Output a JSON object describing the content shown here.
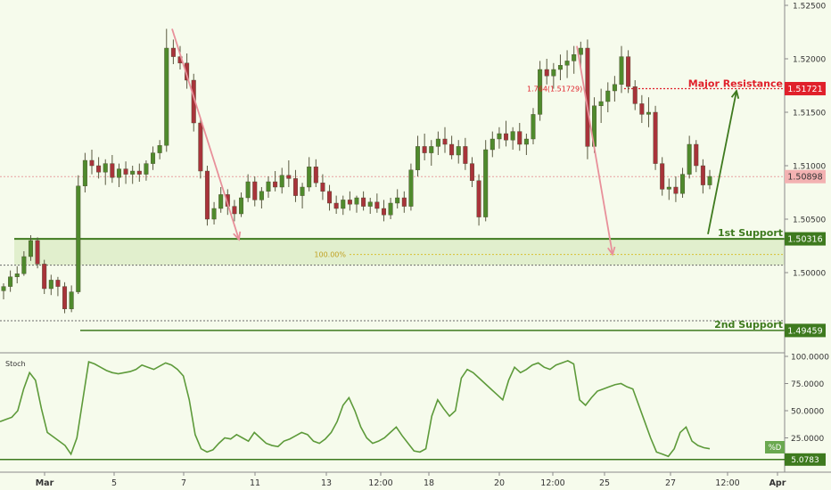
{
  "chart_data": [
    {
      "type": "candlestick",
      "title": "",
      "y_axis_side": "right",
      "ylim": [
        1.4925,
        1.5255
      ],
      "y_ticks": [
        1.5,
        1.505,
        1.51,
        1.515,
        1.52,
        1.525
      ],
      "y_tick_labels": [
        "1.50000",
        "1.50500",
        "1.51000",
        "1.51500",
        "1.52000",
        "1.52500"
      ],
      "x_tick_labels": [
        "Mar",
        "5",
        "7",
        "11",
        "13",
        "12:00",
        "18",
        "20",
        "12:00",
        "25",
        "27",
        "12:00",
        "Apr"
      ],
      "grid": false,
      "ohlc": [
        [
          1.4983,
          1.499,
          1.4975,
          1.4987
        ],
        [
          1.4987,
          1.5002,
          1.4982,
          1.4996
        ],
        [
          1.4996,
          1.5006,
          1.499,
          1.4999
        ],
        [
          1.4999,
          1.502,
          1.4997,
          1.5015
        ],
        [
          1.5015,
          1.5035,
          1.5011,
          1.503
        ],
        [
          1.503,
          1.5033,
          1.5004,
          1.5008
        ],
        [
          1.5008,
          1.5012,
          1.498,
          1.4985
        ],
        [
          1.4985,
          1.4998,
          1.4979,
          1.4993
        ],
        [
          1.4993,
          1.4996,
          1.4978,
          1.4987
        ],
        [
          1.4987,
          1.4991,
          1.4962,
          1.4966
        ],
        [
          1.4966,
          1.4988,
          1.4963,
          1.4982
        ],
        [
          1.4982,
          1.5091,
          1.498,
          1.5081
        ],
        [
          1.5081,
          1.5112,
          1.5075,
          1.5105
        ],
        [
          1.5105,
          1.5115,
          1.5092,
          1.51
        ],
        [
          1.51,
          1.5108,
          1.5088,
          1.5094
        ],
        [
          1.5094,
          1.5106,
          1.5082,
          1.5102
        ],
        [
          1.5102,
          1.511,
          1.5084,
          1.5089
        ],
        [
          1.5089,
          1.5102,
          1.508,
          1.5097
        ],
        [
          1.5097,
          1.5104,
          1.5083,
          1.5092
        ],
        [
          1.5092,
          1.51,
          1.5083,
          1.5095
        ],
        [
          1.5095,
          1.5102,
          1.5085,
          1.5092
        ],
        [
          1.5092,
          1.5105,
          1.5086,
          1.5102
        ],
        [
          1.5102,
          1.5118,
          1.5096,
          1.5112
        ],
        [
          1.5112,
          1.5124,
          1.5106,
          1.5119
        ],
        [
          1.5119,
          1.5228,
          1.5113,
          1.521
        ],
        [
          1.521,
          1.5218,
          1.5195,
          1.5202
        ],
        [
          1.5202,
          1.5212,
          1.519,
          1.5196
        ],
        [
          1.5196,
          1.5205,
          1.5172,
          1.518
        ],
        [
          1.518,
          1.5186,
          1.5132,
          1.514
        ],
        [
          1.514,
          1.5144,
          1.5088,
          1.5095
        ],
        [
          1.5095,
          1.51,
          1.5044,
          1.505
        ],
        [
          1.505,
          1.5066,
          1.5045,
          1.506
        ],
        [
          1.506,
          1.508,
          1.5056,
          1.5073
        ],
        [
          1.5073,
          1.5078,
          1.5054,
          1.5062
        ],
        [
          1.5062,
          1.5068,
          1.5048,
          1.5055
        ],
        [
          1.5055,
          1.5075,
          1.5052,
          1.507
        ],
        [
          1.507,
          1.5092,
          1.5066,
          1.5085
        ],
        [
          1.5085,
          1.509,
          1.5062,
          1.5068
        ],
        [
          1.5068,
          1.508,
          1.506,
          1.5076
        ],
        [
          1.5076,
          1.509,
          1.507,
          1.5085
        ],
        [
          1.5085,
          1.5095,
          1.5076,
          1.508
        ],
        [
          1.508,
          1.5098,
          1.5074,
          1.5091
        ],
        [
          1.5091,
          1.5105,
          1.508,
          1.5088
        ],
        [
          1.5088,
          1.5096,
          1.5066,
          1.5072
        ],
        [
          1.5072,
          1.5084,
          1.506,
          1.508
        ],
        [
          1.508,
          1.5108,
          1.5076,
          1.5099
        ],
        [
          1.5099,
          1.5106,
          1.508,
          1.5084
        ],
        [
          1.5084,
          1.5092,
          1.5068,
          1.5076
        ],
        [
          1.5076,
          1.5082,
          1.5058,
          1.5065
        ],
        [
          1.5065,
          1.5072,
          1.5055,
          1.506
        ],
        [
          1.506,
          1.5072,
          1.5054,
          1.5068
        ],
        [
          1.5068,
          1.5076,
          1.5058,
          1.5064
        ],
        [
          1.5064,
          1.5072,
          1.5056,
          1.507
        ],
        [
          1.507,
          1.5076,
          1.5058,
          1.5062
        ],
        [
          1.5062,
          1.507,
          1.5055,
          1.5066
        ],
        [
          1.5066,
          1.5074,
          1.5056,
          1.506
        ],
        [
          1.506,
          1.5068,
          1.5048,
          1.5054
        ],
        [
          1.5054,
          1.507,
          1.505,
          1.5065
        ],
        [
          1.5065,
          1.5078,
          1.506,
          1.507
        ],
        [
          1.507,
          1.5076,
          1.5056,
          1.5062
        ],
        [
          1.5062,
          1.5102,
          1.5058,
          1.5096
        ],
        [
          1.5096,
          1.5128,
          1.509,
          1.5118
        ],
        [
          1.5118,
          1.513,
          1.5105,
          1.5112
        ],
        [
          1.5112,
          1.5124,
          1.51,
          1.5118
        ],
        [
          1.5118,
          1.5132,
          1.511,
          1.5125
        ],
        [
          1.5125,
          1.5136,
          1.5112,
          1.512
        ],
        [
          1.512,
          1.5128,
          1.5106,
          1.511
        ],
        [
          1.511,
          1.5124,
          1.5102,
          1.5118
        ],
        [
          1.5118,
          1.5126,
          1.5096,
          1.5102
        ],
        [
          1.5102,
          1.5108,
          1.508,
          1.5086
        ],
        [
          1.5086,
          1.5092,
          1.5044,
          1.5052
        ],
        [
          1.5052,
          1.5124,
          1.5048,
          1.5115
        ],
        [
          1.5115,
          1.5132,
          1.5108,
          1.5125
        ],
        [
          1.5125,
          1.5136,
          1.5116,
          1.513
        ],
        [
          1.513,
          1.5142,
          1.5118,
          1.5124
        ],
        [
          1.5124,
          1.5136,
          1.5115,
          1.5132
        ],
        [
          1.5132,
          1.514,
          1.5114,
          1.512
        ],
        [
          1.512,
          1.513,
          1.511,
          1.5125
        ],
        [
          1.5125,
          1.5154,
          1.512,
          1.5148
        ],
        [
          1.5148,
          1.5198,
          1.5142,
          1.519
        ],
        [
          1.519,
          1.52,
          1.5176,
          1.5184
        ],
        [
          1.5184,
          1.5196,
          1.5172,
          1.519
        ],
        [
          1.519,
          1.5204,
          1.518,
          1.5194
        ],
        [
          1.5194,
          1.5208,
          1.5182,
          1.5198
        ],
        [
          1.5198,
          1.5212,
          1.5186,
          1.5204
        ],
        [
          1.5204,
          1.5216,
          1.5192,
          1.521
        ],
        [
          1.521,
          1.5218,
          1.5106,
          1.5118
        ],
        [
          1.5118,
          1.5164,
          1.5112,
          1.5156
        ],
        [
          1.5156,
          1.5172,
          1.514,
          1.516
        ],
        [
          1.516,
          1.5178,
          1.515,
          1.517
        ],
        [
          1.517,
          1.5184,
          1.516,
          1.5176
        ],
        [
          1.5176,
          1.5212,
          1.5168,
          1.5202
        ],
        [
          1.5202,
          1.5208,
          1.5168,
          1.5174
        ],
        [
          1.5174,
          1.518,
          1.5152,
          1.5158
        ],
        [
          1.5158,
          1.5166,
          1.514,
          1.5148
        ],
        [
          1.5148,
          1.5164,
          1.5136,
          1.515
        ],
        [
          1.515,
          1.5156,
          1.5096,
          1.5102
        ],
        [
          1.5102,
          1.5108,
          1.5072,
          1.5078
        ],
        [
          1.5078,
          1.5088,
          1.5068,
          1.508
        ],
        [
          1.508,
          1.509,
          1.5066,
          1.5074
        ],
        [
          1.5074,
          1.5098,
          1.507,
          1.5092
        ],
        [
          1.5092,
          1.5128,
          1.5088,
          1.512
        ],
        [
          1.512,
          1.5124,
          1.5094,
          1.51
        ],
        [
          1.51,
          1.5106,
          1.5074,
          1.5082
        ],
        [
          1.5082,
          1.5096,
          1.5078,
          1.509
        ]
      ],
      "annotations": {
        "major_resistance": {
          "label": "Major Resistance",
          "value": 1.51721,
          "value_label": "1.51721",
          "color": "#e0202a",
          "fib_label": "1.764(1.51729)"
        },
        "first_support": {
          "label": "1st Support",
          "value": 1.50316,
          "value_label": "1.50316",
          "color": "#3e7a1e",
          "zone_low": 1.5007,
          "fib_level": 1.5017,
          "fib_label": "100.00%"
        },
        "second_support": {
          "label": "2nd Support",
          "value": 1.49459,
          "value_label": "1.49459",
          "color": "#3e7a1e",
          "dotted_level": 1.4955
        },
        "current_price": {
          "value": 1.50898,
          "value_label": "1.50898",
          "color": "#f3b2b2"
        },
        "projection_arrow": {
          "from": 1.5036,
          "to": 1.517,
          "color": "#3e7a1e"
        },
        "move_arrows": [
          {
            "from": 1.5228,
            "to": 1.5031,
            "color": "#e8909a"
          },
          {
            "from": 1.5212,
            "to": 1.5017,
            "color": "#e8909a"
          }
        ]
      }
    },
    {
      "type": "line",
      "title": "Stoch",
      "legend_label": "%D",
      "ylim": [
        0,
        100
      ],
      "y_ticks": [
        25,
        50,
        75,
        100
      ],
      "y_tick_labels": [
        "25.0000",
        "50.0000",
        "75.0000",
        "100.0000"
      ],
      "reference_value": 5.0783,
      "reference_label": "5.0783",
      "line_color": "#5d9a3a",
      "values": [
        40,
        42,
        44,
        50,
        70,
        85,
        78,
        52,
        30,
        26,
        22,
        18,
        10,
        25,
        60,
        95,
        93,
        90,
        87,
        85,
        84,
        85,
        86,
        88,
        92,
        90,
        88,
        91,
        94,
        92,
        88,
        82,
        60,
        28,
        15,
        12,
        14,
        20,
        25,
        24,
        28,
        25,
        22,
        30,
        25,
        20,
        18,
        17,
        22,
        24,
        27,
        30,
        28,
        22,
        20,
        24,
        30,
        40,
        55,
        62,
        50,
        35,
        25,
        20,
        22,
        25,
        30,
        35,
        27,
        20,
        13,
        12,
        15,
        45,
        60,
        52,
        45,
        50,
        80,
        88,
        85,
        80,
        75,
        70,
        65,
        60,
        78,
        90,
        85,
        88,
        92,
        94,
        90,
        88,
        92,
        94,
        96,
        93,
        60,
        55,
        62,
        68,
        70,
        72,
        74,
        75,
        72,
        70,
        55,
        40,
        25,
        12,
        10,
        8,
        15,
        30,
        35,
        22,
        18,
        16,
        15
      ]
    }
  ]
}
